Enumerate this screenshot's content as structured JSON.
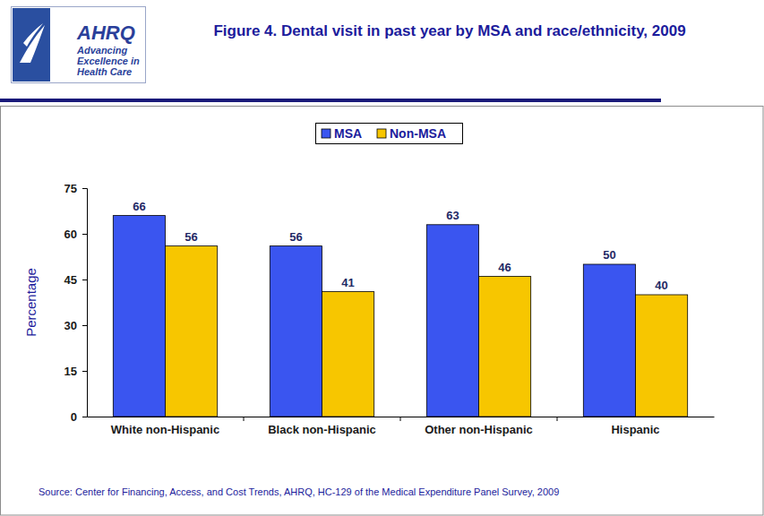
{
  "chart_data": {
    "type": "bar",
    "title": "Figure 4. Dental visit in past year by MSA and race/ethnicity, 2009",
    "y_label": "Percentage",
    "source": "Source: Center for Financing, Access, and Cost Trends, AHRQ, HC-129 of the Medical Expenditure Panel Survey,  2009",
    "annotations": [
      "AHRQ",
      "Advancing",
      "Excellence in",
      "Health Care"
    ],
    "categories": [
      "White non-Hispanic",
      "Black non-Hispanic",
      "Other non-Hispanic",
      "Hispanic"
    ],
    "series": [
      {
        "name": "MSA",
        "color": "#3a55f0",
        "values": [
          66,
          56,
          63,
          50
        ]
      },
      {
        "name": "Non-MSA",
        "color": "#f7c600",
        "values": [
          56,
          41,
          46,
          40
        ]
      }
    ],
    "ylim": [
      0,
      75
    ],
    "yticks": [
      0,
      15,
      30,
      45,
      60,
      75
    ],
    "grid": false,
    "legend": "top",
    "data_labels": true
  }
}
